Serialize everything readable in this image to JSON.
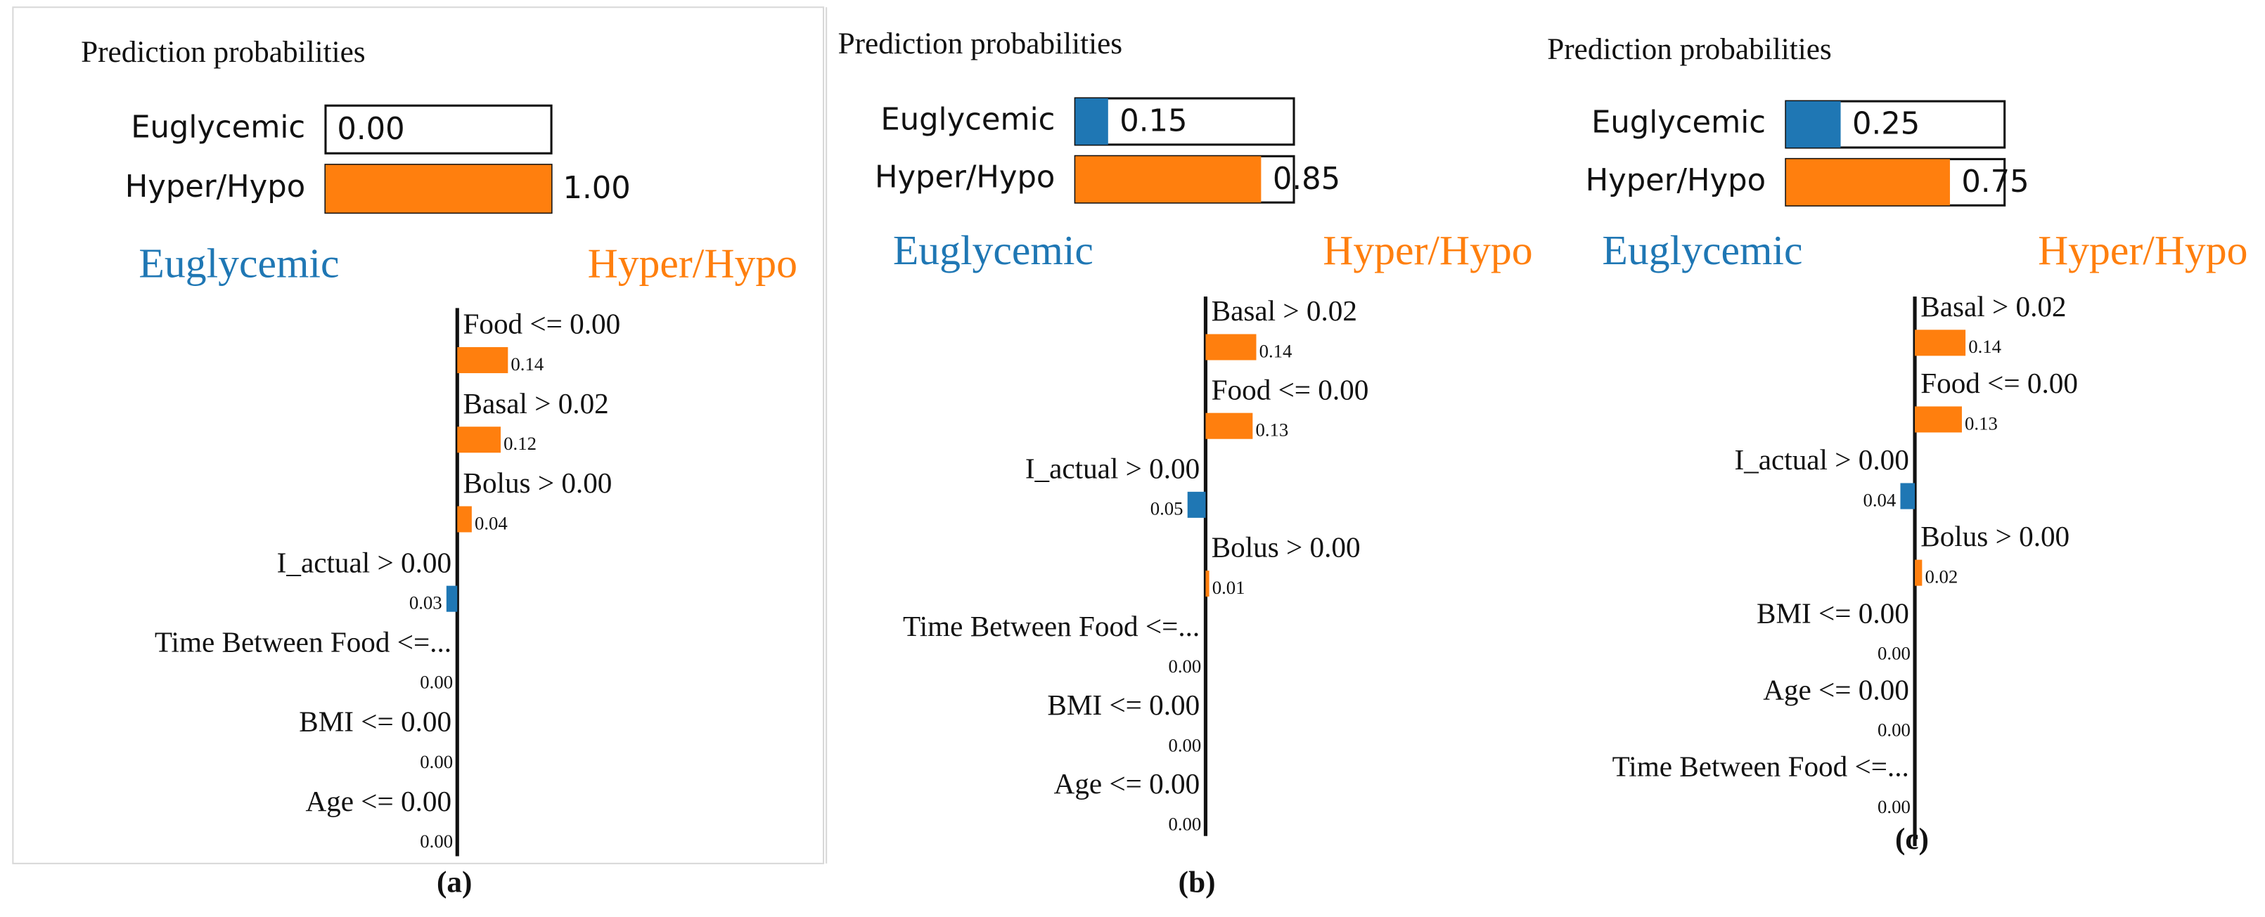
{
  "chart_data": [
    {
      "type": "lime",
      "caption": "(a)",
      "title": "Prediction probabilities",
      "categories": [
        "Euglycemic",
        "Hyper/Hypo"
      ],
      "values": [
        0,
        1
      ],
      "value_labels": [
        "0.00",
        "1.00"
      ],
      "class_names": [
        "Euglycemic",
        "Hyper/Hypo"
      ],
      "colors": [
        "#1f77b4",
        "#ff7f0e"
      ],
      "features": [
        "Food <= 0.00",
        "Basal > 0.02",
        "Bolus > 0.00",
        "I_actual > 0.00",
        "Time Between Food <=...",
        "BMI <= 0.00",
        "Age <= 0.00"
      ],
      "weights": [
        0.14,
        0.12,
        0.04,
        0.03,
        0,
        0,
        0
      ],
      "weight_labels": [
        "0.14",
        "0.12",
        "0.04",
        "0.03",
        "0.00",
        "0.00",
        "0.00"
      ],
      "sides": [
        "right",
        "right",
        "right",
        "left",
        "left",
        "left",
        "left"
      ]
    },
    {
      "type": "lime",
      "caption": "(b)",
      "title": "Prediction probabilities",
      "categories": [
        "Euglycemic",
        "Hyper/Hypo"
      ],
      "values": [
        0.15,
        0.85
      ],
      "value_labels": [
        "0.15",
        "0.85"
      ],
      "class_names": [
        "Euglycemic",
        "Hyper/Hypo"
      ],
      "colors": [
        "#1f77b4",
        "#ff7f0e"
      ],
      "features": [
        "Basal > 0.02",
        "Food <= 0.00",
        "I_actual > 0.00",
        "Bolus > 0.00",
        "Time Between Food <=...",
        "BMI <= 0.00",
        "Age <= 0.00"
      ],
      "weights": [
        0.14,
        0.13,
        0.05,
        0.01,
        0,
        0,
        0
      ],
      "weight_labels": [
        "0.14",
        "0.13",
        "0.05",
        "0.01",
        "0.00",
        "0.00",
        "0.00"
      ],
      "sides": [
        "right",
        "right",
        "left",
        "right",
        "left",
        "left",
        "left"
      ]
    },
    {
      "type": "lime",
      "caption": "(c)",
      "title": "Prediction probabilities",
      "categories": [
        "Euglycemic",
        "Hyper/Hypo"
      ],
      "values": [
        0.25,
        0.75
      ],
      "value_labels": [
        "0.25",
        "0.75"
      ],
      "class_names": [
        "Euglycemic",
        "Hyper/Hypo"
      ],
      "colors": [
        "#1f77b4",
        "#ff7f0e"
      ],
      "features": [
        "Basal > 0.02",
        "Food <= 0.00",
        "I_actual > 0.00",
        "Bolus > 0.00",
        "BMI <= 0.00",
        "Age <= 0.00",
        "Time Between Food <=..."
      ],
      "weights": [
        0.14,
        0.13,
        0.04,
        0.02,
        0,
        0,
        0
      ],
      "weight_labels": [
        "0.14",
        "0.13",
        "0.04",
        "0.02",
        "0.00",
        "0.00",
        "0.00"
      ],
      "sides": [
        "right",
        "right",
        "left",
        "right",
        "left",
        "left",
        "left"
      ]
    }
  ]
}
